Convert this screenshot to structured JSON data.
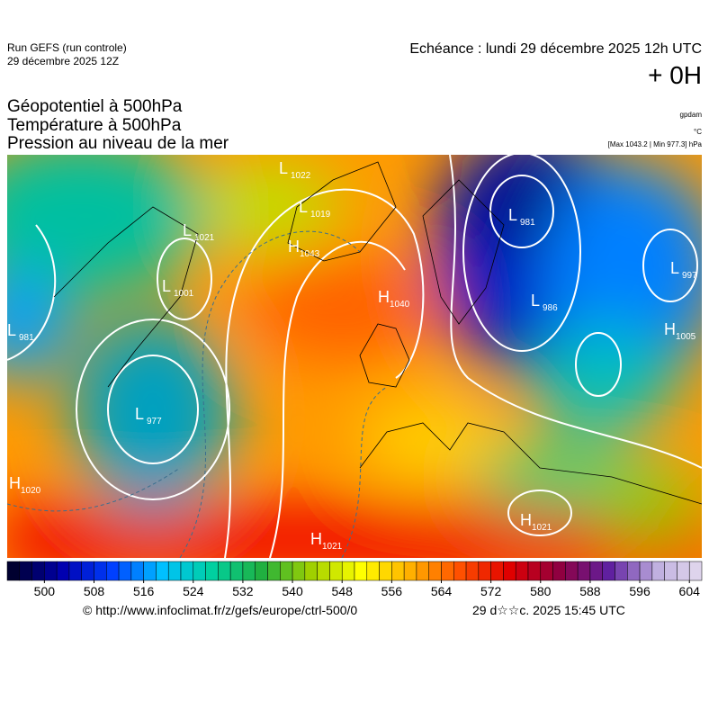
{
  "header": {
    "run": "Run GEFS (run controle)",
    "run_date": "29 décembre 2025 12Z",
    "echeance": "Echéance : lundi 29 décembre 2025 12h UTC",
    "lead": "+ 0H"
  },
  "fields": {
    "line1": "Géopotentiel à 500hPa",
    "line2": "Température à 500hPa",
    "line3": "Pression au niveau de la mer",
    "unit1": "gpdam",
    "unit2": "°C",
    "unit3": "[Max 1043.2 | Min 977.3] hPa"
  },
  "pressure_centers": [
    {
      "type": "L",
      "value": 1022
    },
    {
      "type": "L",
      "value": 1019
    },
    {
      "type": "H",
      "value": 1043
    },
    {
      "type": "L",
      "value": 1021
    },
    {
      "type": "L",
      "value": 1001
    },
    {
      "type": "L",
      "value": 981
    },
    {
      "type": "L",
      "value": 977
    },
    {
      "type": "H",
      "value": 1020
    },
    {
      "type": "H",
      "value": 1040
    },
    {
      "type": "L",
      "value": 981
    },
    {
      "type": "L",
      "value": 986
    },
    {
      "type": "L",
      "value": 997
    },
    {
      "type": "H",
      "value": 1005
    },
    {
      "type": "H",
      "value": 1021
    },
    {
      "type": "H",
      "value": 1021
    }
  ],
  "colorbar": {
    "range": [
      494,
      606
    ],
    "ticks": [
      500,
      508,
      516,
      524,
      532,
      540,
      548,
      556,
      564,
      572,
      580,
      588,
      596,
      604
    ],
    "colors": [
      "#000030",
      "#0000b0",
      "#0040ff",
      "#00c0ff",
      "#00d0a0",
      "#20b040",
      "#a0d000",
      "#ffff00",
      "#ffb000",
      "#ff5000",
      "#e00000",
      "#900040",
      "#6020a0",
      "#c0b0e0",
      "#e8e0f0"
    ]
  },
  "footer": {
    "source": "© http://www.infoclimat.fr/z/gefs/europe/ctrl-500/0",
    "generated": "29 d☆☆c. 2025 15:45 UTC"
  }
}
